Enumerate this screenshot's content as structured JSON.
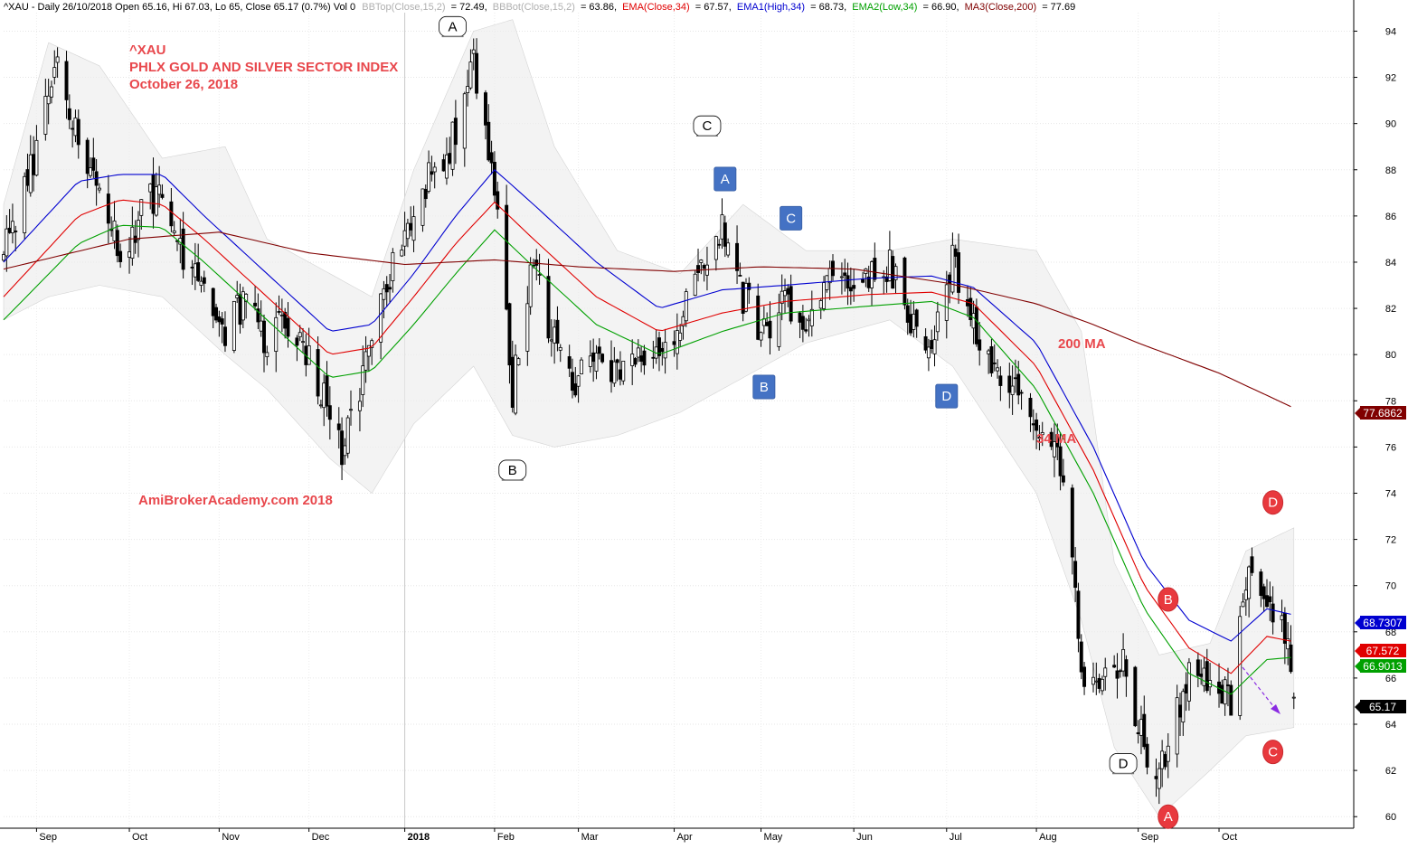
{
  "header": {
    "summary": "^XAU - Daily 26/10/2018 Open 65.16, Hi 67.03, Lo 65, Close 65.17 (0.7%) Vol 0",
    "bbtop_label": "BBTop(Close,15,2)",
    "bbtop_value": "= 72.49,",
    "bbbot_label": "BBBot(Close,15,2)",
    "bbbot_value": "= 63.86,",
    "ema_label": "EMA(Close,34)",
    "ema_value": "= 67.57,",
    "ema1_label": "EMA1(High,34)",
    "ema1_value": "= 68.73,",
    "ema2_label": "EMA2(Low,34)",
    "ema2_value": "= 66.90,",
    "ma3_label": "MA3(Close,200)",
    "ma3_value": "= 77.69",
    "colors": {
      "text": "#000000",
      "bb": "#c0c0c0",
      "ema": "#e00000",
      "ema1": "#0000d0",
      "ema2": "#00a000",
      "ma3": "#800000"
    }
  },
  "annotations": {
    "symbol": "^XAU",
    "name": "PHLX GOLD AND SILVER SECTOR INDEX",
    "date": "October 26, 2018",
    "watermark": "AmiBrokerAcademy.com  2018",
    "ma200_label": "200 MA",
    "ma34_label": "34 MA"
  },
  "wave_labels": [
    {
      "text": "A",
      "style": "white",
      "x_date": "2018-01-18",
      "y": 94.2
    },
    {
      "text": "B",
      "style": "white",
      "x_date": "2018-02-07",
      "y": 75.0
    },
    {
      "text": "C",
      "style": "white",
      "x_date": "2018-04-13",
      "y": 89.9
    },
    {
      "text": "D",
      "style": "white",
      "x_date": "2018-08-30",
      "y": 62.3
    },
    {
      "text": "A",
      "style": "blue",
      "x_date": "2018-04-19",
      "y": 87.6
    },
    {
      "text": "B",
      "style": "blue",
      "x_date": "2018-05-02",
      "y": 78.6
    },
    {
      "text": "C",
      "style": "blue",
      "x_date": "2018-05-11",
      "y": 85.9
    },
    {
      "text": "D",
      "style": "blue",
      "x_date": "2018-07-02",
      "y": 78.2
    },
    {
      "text": "A",
      "style": "red",
      "x_date": "2018-09-14",
      "y": 60.0
    },
    {
      "text": "B",
      "style": "red",
      "x_date": "2018-09-14",
      "y": 69.4
    },
    {
      "text": "C",
      "style": "red",
      "x_date": "2018-10-19",
      "y": 62.8
    },
    {
      "text": "D",
      "style": "red",
      "x_date": "2018-10-19",
      "y": 73.6
    }
  ],
  "price_badges": [
    {
      "value": "77.6862",
      "color": "#800000"
    },
    {
      "value": "68.7307",
      "color": "#0000d0"
    },
    {
      "value": "67.572",
      "color": "#e00000"
    },
    {
      "value": "66.9013",
      "color": "#00a000"
    },
    {
      "value": "65.17",
      "color": "#000000"
    }
  ],
  "chart_data": {
    "type": "candlestick",
    "title": "^XAU - Daily",
    "ylim": [
      59.5,
      94.8
    ],
    "x_range": [
      "2017-08-21",
      "2018-11-15"
    ],
    "y_ticks": [
      60,
      62,
      64,
      66,
      68,
      70,
      72,
      74,
      76,
      78,
      80,
      82,
      84,
      86,
      88,
      90,
      92,
      94
    ],
    "x_ticks": [
      {
        "label": "Sep",
        "date": "2017-09-01"
      },
      {
        "label": "Oct",
        "date": "2017-10-02"
      },
      {
        "label": "Nov",
        "date": "2017-11-01"
      },
      {
        "label": "Dec",
        "date": "2017-12-01"
      },
      {
        "label": "2018",
        "date": "2018-01-02",
        "bold": true
      },
      {
        "label": "Feb",
        "date": "2018-02-01"
      },
      {
        "label": "Mar",
        "date": "2018-03-01"
      },
      {
        "label": "Apr",
        "date": "2018-04-02"
      },
      {
        "label": "May",
        "date": "2018-05-01"
      },
      {
        "label": "Jun",
        "date": "2018-06-01"
      },
      {
        "label": "Jul",
        "date": "2018-07-02"
      },
      {
        "label": "Aug",
        "date": "2018-08-01"
      },
      {
        "label": "Sep",
        "date": "2018-09-04"
      },
      {
        "label": "Oct",
        "date": "2018-10-01"
      }
    ],
    "grid": true,
    "close_path": [
      [
        "2017-08-21",
        84.5
      ],
      [
        "2017-08-28",
        87.0
      ],
      [
        "2017-09-05",
        91.0
      ],
      [
        "2017-09-08",
        92.5
      ],
      [
        "2017-09-15",
        89.0
      ],
      [
        "2017-09-22",
        87.0
      ],
      [
        "2017-09-29",
        84.5
      ],
      [
        "2017-10-06",
        86.0
      ],
      [
        "2017-10-13",
        87.5
      ],
      [
        "2017-10-20",
        84.0
      ],
      [
        "2017-10-27",
        82.5
      ],
      [
        "2017-11-03",
        81.0
      ],
      [
        "2017-11-10",
        82.5
      ],
      [
        "2017-11-17",
        80.5
      ],
      [
        "2017-11-24",
        81.5
      ],
      [
        "2017-12-01",
        80.0
      ],
      [
        "2017-12-08",
        77.5
      ],
      [
        "2017-12-12",
        76.0
      ],
      [
        "2017-12-15",
        77.0
      ],
      [
        "2017-12-22",
        80.5
      ],
      [
        "2017-12-29",
        84.0
      ],
      [
        "2018-01-05",
        86.5
      ],
      [
        "2018-01-12",
        88.0
      ],
      [
        "2018-01-19",
        89.5
      ],
      [
        "2018-01-25",
        92.5
      ],
      [
        "2018-02-01",
        87.5
      ],
      [
        "2018-02-07",
        78.5
      ],
      [
        "2018-02-14",
        84.0
      ],
      [
        "2018-02-21",
        80.5
      ],
      [
        "2018-02-28",
        78.5
      ],
      [
        "2018-03-07",
        80.5
      ],
      [
        "2018-03-14",
        79.0
      ],
      [
        "2018-03-21",
        80.5
      ],
      [
        "2018-03-28",
        79.5
      ],
      [
        "2018-04-04",
        81.5
      ],
      [
        "2018-04-11",
        84.0
      ],
      [
        "2018-04-18",
        85.5
      ],
      [
        "2018-04-25",
        82.5
      ],
      [
        "2018-05-02",
        81.0
      ],
      [
        "2018-05-09",
        82.5
      ],
      [
        "2018-05-16",
        81.5
      ],
      [
        "2018-05-23",
        83.5
      ],
      [
        "2018-05-30",
        83.0
      ],
      [
        "2018-06-06",
        83.5
      ],
      [
        "2018-06-13",
        84.0
      ],
      [
        "2018-06-20",
        81.5
      ],
      [
        "2018-06-27",
        80.5
      ],
      [
        "2018-07-04",
        84.0
      ],
      [
        "2018-07-11",
        81.5
      ],
      [
        "2018-07-18",
        79.0
      ],
      [
        "2018-07-25",
        78.5
      ],
      [
        "2018-08-01",
        76.5
      ],
      [
        "2018-08-08",
        75.5
      ],
      [
        "2018-08-13",
        71.0
      ],
      [
        "2018-08-16",
        66.0
      ],
      [
        "2018-08-20",
        66.5
      ],
      [
        "2018-08-23",
        66.0
      ],
      [
        "2018-08-30",
        66.5
      ],
      [
        "2018-09-06",
        63.0
      ],
      [
        "2018-09-11",
        61.5
      ],
      [
        "2018-09-14",
        63.5
      ],
      [
        "2018-09-21",
        66.0
      ],
      [
        "2018-09-28",
        65.5
      ],
      [
        "2018-10-05",
        65.0
      ],
      [
        "2018-10-10",
        70.5
      ],
      [
        "2018-10-17",
        69.5
      ],
      [
        "2018-10-24",
        67.5
      ],
      [
        "2018-10-26",
        65.17
      ]
    ],
    "series": [
      {
        "name": "EMA1(High,34)",
        "color": "#0000d0",
        "points": [
          [
            "2017-08-21",
            84.0
          ],
          [
            "2017-09-15",
            87.5
          ],
          [
            "2017-09-29",
            87.8
          ],
          [
            "2017-10-13",
            87.8
          ],
          [
            "2017-10-27",
            86.0
          ],
          [
            "2017-11-17",
            83.5
          ],
          [
            "2017-12-08",
            81.0
          ],
          [
            "2017-12-22",
            81.3
          ],
          [
            "2018-01-05",
            83.5
          ],
          [
            "2018-01-19",
            86.0
          ],
          [
            "2018-02-01",
            88.0
          ],
          [
            "2018-02-14",
            86.5
          ],
          [
            "2018-03-07",
            84.0
          ],
          [
            "2018-03-28",
            82.0
          ],
          [
            "2018-04-18",
            82.8
          ],
          [
            "2018-05-09",
            83.0
          ],
          [
            "2018-06-06",
            83.3
          ],
          [
            "2018-06-27",
            83.4
          ],
          [
            "2018-07-11",
            82.9
          ],
          [
            "2018-08-01",
            80.5
          ],
          [
            "2018-08-20",
            76.0
          ],
          [
            "2018-09-06",
            71.0
          ],
          [
            "2018-09-21",
            68.5
          ],
          [
            "2018-10-05",
            67.6
          ],
          [
            "2018-10-17",
            69.0
          ],
          [
            "2018-10-26",
            68.73
          ]
        ]
      },
      {
        "name": "EMA(Close,34)",
        "color": "#e00000",
        "points": [
          [
            "2017-08-21",
            82.5
          ],
          [
            "2017-09-15",
            86.0
          ],
          [
            "2017-09-29",
            86.7
          ],
          [
            "2017-10-13",
            86.5
          ],
          [
            "2017-10-27",
            85.0
          ],
          [
            "2017-11-17",
            82.5
          ],
          [
            "2017-12-08",
            80.0
          ],
          [
            "2017-12-22",
            80.3
          ],
          [
            "2018-01-05",
            82.5
          ],
          [
            "2018-01-19",
            84.8
          ],
          [
            "2018-02-01",
            86.6
          ],
          [
            "2018-02-14",
            85.0
          ],
          [
            "2018-03-07",
            82.5
          ],
          [
            "2018-03-28",
            81.0
          ],
          [
            "2018-04-18",
            81.8
          ],
          [
            "2018-05-09",
            82.3
          ],
          [
            "2018-06-06",
            82.6
          ],
          [
            "2018-06-27",
            82.7
          ],
          [
            "2018-07-11",
            82.2
          ],
          [
            "2018-08-01",
            79.5
          ],
          [
            "2018-08-20",
            75.0
          ],
          [
            "2018-09-06",
            70.0
          ],
          [
            "2018-09-21",
            67.3
          ],
          [
            "2018-10-05",
            66.2
          ],
          [
            "2018-10-17",
            67.8
          ],
          [
            "2018-10-26",
            67.57
          ]
        ]
      },
      {
        "name": "EMA2(Low,34)",
        "color": "#00a000",
        "points": [
          [
            "2017-08-21",
            81.5
          ],
          [
            "2017-09-15",
            84.8
          ],
          [
            "2017-09-29",
            85.6
          ],
          [
            "2017-10-13",
            85.5
          ],
          [
            "2017-10-27",
            84.0
          ],
          [
            "2017-11-17",
            81.5
          ],
          [
            "2017-12-08",
            79.0
          ],
          [
            "2017-12-22",
            79.3
          ],
          [
            "2018-01-05",
            81.3
          ],
          [
            "2018-01-19",
            83.5
          ],
          [
            "2018-02-01",
            85.4
          ],
          [
            "2018-02-14",
            83.8
          ],
          [
            "2018-03-07",
            81.3
          ],
          [
            "2018-03-28",
            80.0
          ],
          [
            "2018-04-18",
            81.0
          ],
          [
            "2018-05-09",
            81.8
          ],
          [
            "2018-06-06",
            82.1
          ],
          [
            "2018-06-27",
            82.3
          ],
          [
            "2018-07-11",
            81.6
          ],
          [
            "2018-08-01",
            78.5
          ],
          [
            "2018-08-20",
            74.0
          ],
          [
            "2018-09-06",
            69.0
          ],
          [
            "2018-09-21",
            66.2
          ],
          [
            "2018-10-05",
            65.3
          ],
          [
            "2018-10-17",
            66.8
          ],
          [
            "2018-10-26",
            66.9
          ]
        ]
      },
      {
        "name": "MA3(Close,200)",
        "color": "#800000",
        "points": [
          [
            "2017-08-21",
            83.7
          ],
          [
            "2017-10-02",
            85.0
          ],
          [
            "2017-11-01",
            85.3
          ],
          [
            "2017-12-01",
            84.4
          ],
          [
            "2018-01-02",
            83.9
          ],
          [
            "2018-02-01",
            84.1
          ],
          [
            "2018-03-01",
            83.8
          ],
          [
            "2018-04-02",
            83.6
          ],
          [
            "2018-05-01",
            83.8
          ],
          [
            "2018-06-01",
            83.7
          ],
          [
            "2018-07-02",
            83.1
          ],
          [
            "2018-08-01",
            82.2
          ],
          [
            "2018-08-20",
            81.3
          ],
          [
            "2018-09-04",
            80.5
          ],
          [
            "2018-10-01",
            79.2
          ],
          [
            "2018-10-26",
            77.69
          ]
        ]
      }
    ],
    "bollinger": {
      "name": "BBTop/BBBot(Close,15,2)",
      "color": "#c0c0c0",
      "upper": [
        [
          "2017-08-21",
          86.5
        ],
        [
          "2017-09-05",
          93.5
        ],
        [
          "2017-09-22",
          92.5
        ],
        [
          "2017-10-13",
          88.5
        ],
        [
          "2017-11-03",
          89.0
        ],
        [
          "2017-11-17",
          85.0
        ],
        [
          "2017-12-08",
          83.5
        ],
        [
          "2017-12-22",
          82.5
        ],
        [
          "2018-01-05",
          88.0
        ],
        [
          "2018-01-25",
          94.0
        ],
        [
          "2018-02-07",
          94.5
        ],
        [
          "2018-02-21",
          89.0
        ],
        [
          "2018-03-14",
          84.5
        ],
        [
          "2018-04-04",
          83.5
        ],
        [
          "2018-04-25",
          86.5
        ],
        [
          "2018-05-16",
          84.5
        ],
        [
          "2018-06-13",
          84.5
        ],
        [
          "2018-07-04",
          85.0
        ],
        [
          "2018-08-01",
          84.5
        ],
        [
          "2018-08-16",
          81.0
        ],
        [
          "2018-08-27",
          71.0
        ],
        [
          "2018-09-11",
          67.0
        ],
        [
          "2018-09-28",
          67.5
        ],
        [
          "2018-10-10",
          71.5
        ],
        [
          "2018-10-26",
          72.5
        ]
      ],
      "lower": [
        [
          "2017-08-21",
          81.5
        ],
        [
          "2017-09-05",
          82.5
        ],
        [
          "2017-09-22",
          83.0
        ],
        [
          "2017-10-13",
          82.5
        ],
        [
          "2017-11-03",
          80.0
        ],
        [
          "2017-11-17",
          78.5
        ],
        [
          "2017-12-08",
          75.5
        ],
        [
          "2017-12-22",
          74.0
        ],
        [
          "2018-01-05",
          77.0
        ],
        [
          "2018-01-25",
          79.5
        ],
        [
          "2018-02-07",
          76.5
        ],
        [
          "2018-02-21",
          76.0
        ],
        [
          "2018-03-14",
          76.5
        ],
        [
          "2018-04-04",
          77.5
        ],
        [
          "2018-04-25",
          79.0
        ],
        [
          "2018-05-16",
          80.5
        ],
        [
          "2018-06-13",
          81.5
        ],
        [
          "2018-07-04",
          79.5
        ],
        [
          "2018-08-01",
          74.0
        ],
        [
          "2018-08-16",
          68.5
        ],
        [
          "2018-08-27",
          63.0
        ],
        [
          "2018-09-11",
          60.0
        ],
        [
          "2018-09-28",
          62.0
        ],
        [
          "2018-10-10",
          63.5
        ],
        [
          "2018-10-26",
          63.86
        ]
      ]
    }
  }
}
